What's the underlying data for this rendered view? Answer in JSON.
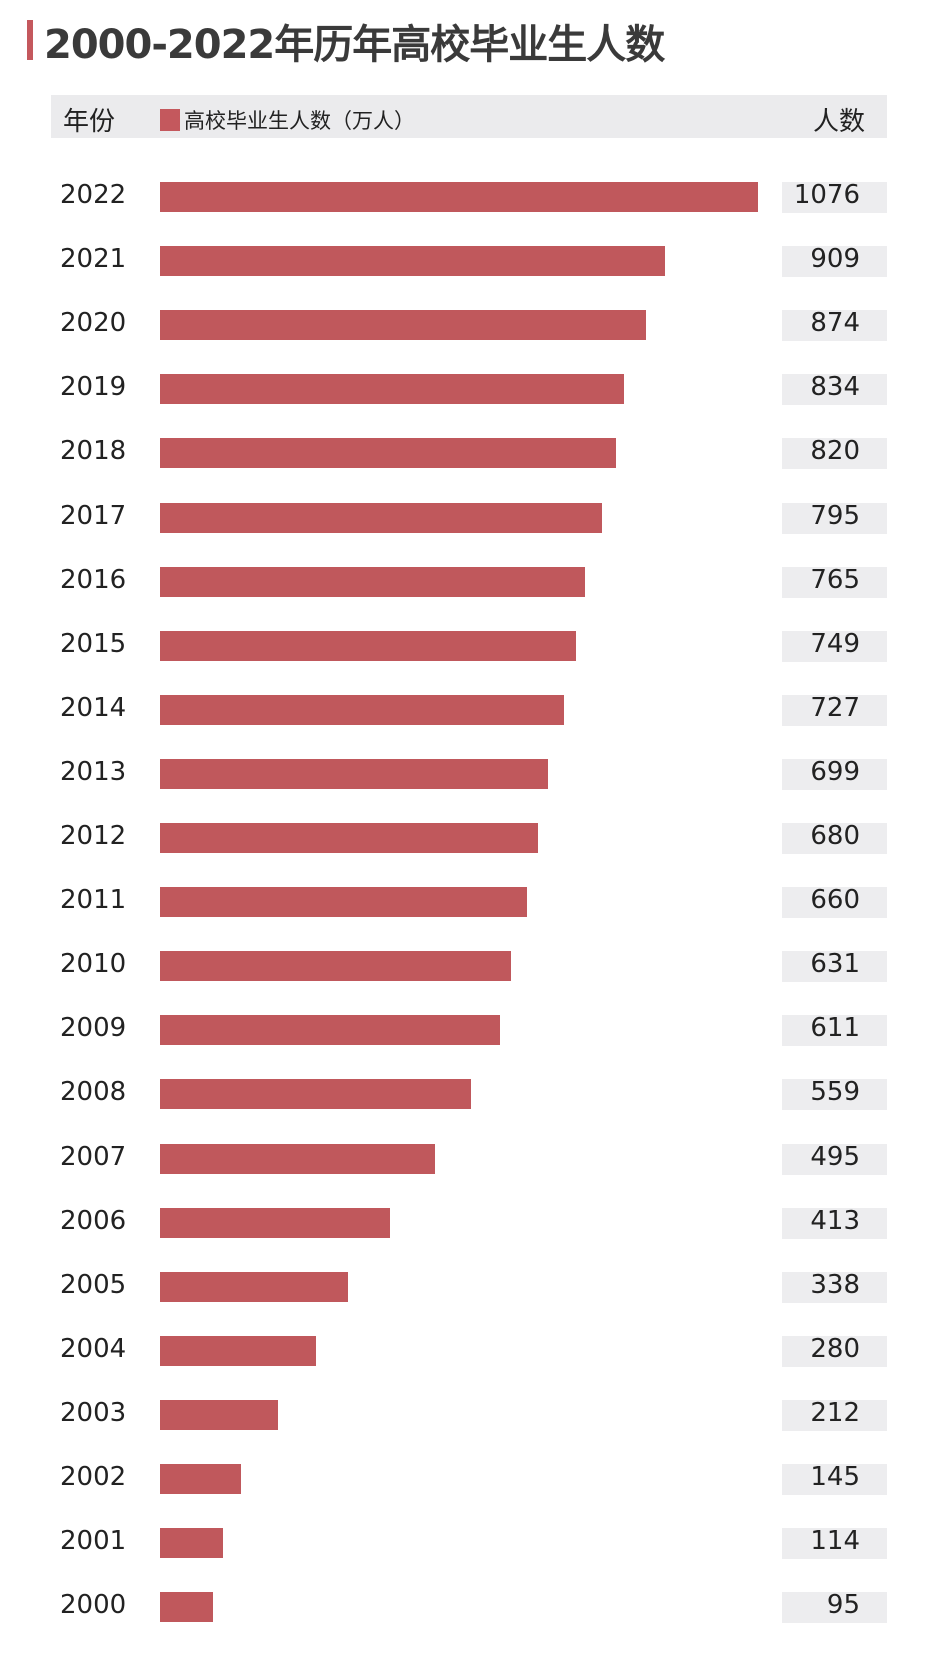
{
  "chart_data": {
    "type": "bar",
    "orientation": "horizontal",
    "title": "2000-2022年历年高校毕业生人数",
    "header": {
      "year_label": "年份",
      "legend_label": "高校毕业生人数（万人）",
      "value_label": "人数"
    },
    "series": [
      {
        "name": "高校毕业生人数（万人）",
        "color": "#c0585c"
      }
    ],
    "categories": [
      "2022",
      "2021",
      "2020",
      "2019",
      "2018",
      "2017",
      "2016",
      "2015",
      "2014",
      "2013",
      "2012",
      "2011",
      "2010",
      "2009",
      "2008",
      "2007",
      "2006",
      "2005",
      "2004",
      "2003",
      "2002",
      "2001",
      "2000"
    ],
    "values": [
      1076,
      909,
      874,
      834,
      820,
      795,
      765,
      749,
      727,
      699,
      680,
      660,
      631,
      611,
      559,
      495,
      413,
      338,
      280,
      212,
      145,
      114,
      95
    ],
    "xlim": [
      0,
      1076
    ]
  }
}
